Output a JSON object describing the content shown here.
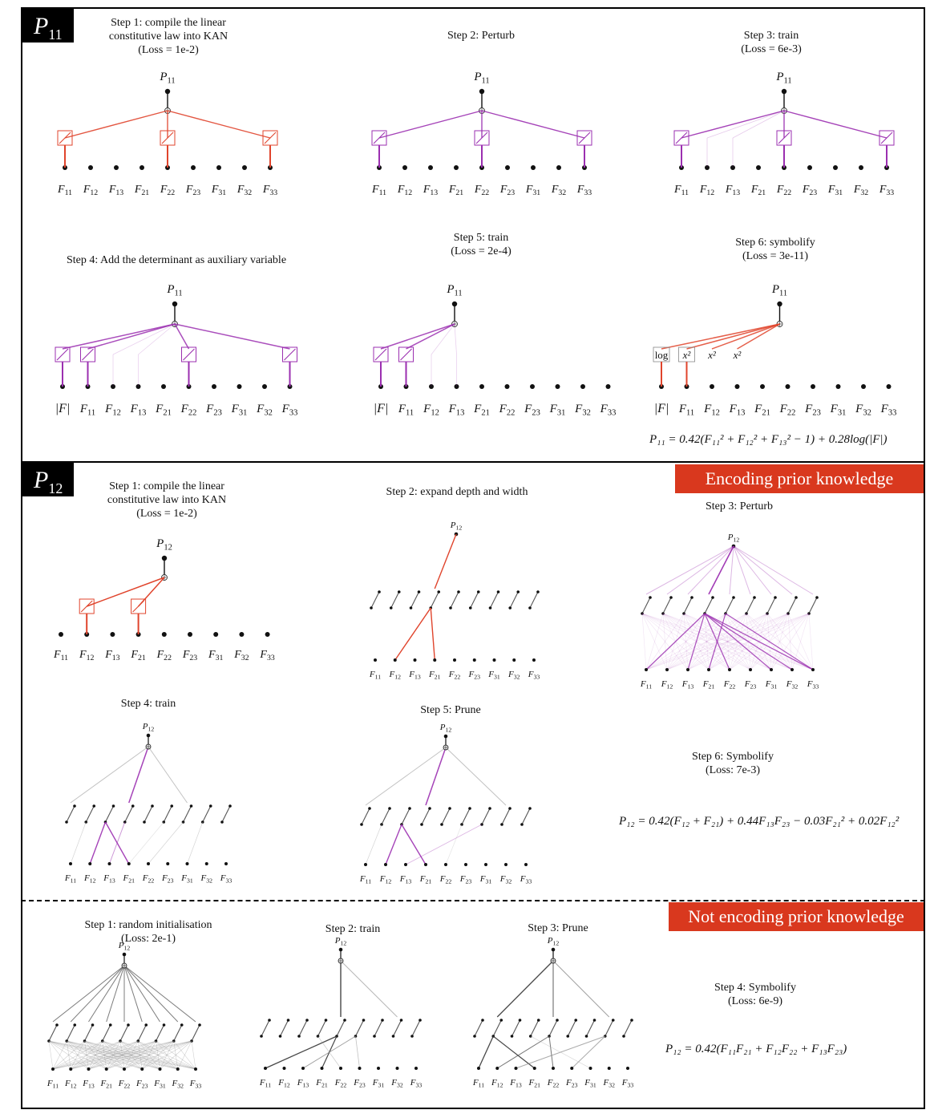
{
  "sections": [
    {
      "tag_letter": "P",
      "tag_sub": "11"
    },
    {
      "tag_letter": "P",
      "tag_sub": "12"
    }
  ],
  "banners": {
    "encoding": "Encoding prior knowledge",
    "not_encoding": "Not encoding prior knowledge"
  },
  "inputs": [
    "11",
    "12",
    "13",
    "21",
    "22",
    "23",
    "31",
    "32",
    "33"
  ],
  "det_label": "|F|",
  "output_sub_p11": "11",
  "output_sub_p12": "12",
  "p11": {
    "step1": "Step 1: compile the linear\nconstitutive law into KAN\n(Loss = 1e-2)",
    "step2": "Step 2: Perturb",
    "step3": "Step 3: train\n(Loss = 6e-3)",
    "step4": "Step 4: Add the determinant as auxiliary variable",
    "step5": "Step 5: train\n(Loss = 2e-4)",
    "step6": "Step 6: symbolify\n(Loss = 3e-11)",
    "sym_labels": [
      "log",
      "x²",
      "x²",
      "x²"
    ],
    "formula": "P₁₁ = 0.42(F₁₁² + F₁₂² + F₁₃² − 1) + 0.28log(|F|)"
  },
  "p12": {
    "step1": "Step 1: compile the linear\nconstitutive law into KAN\n(Loss = 1e-2)",
    "step2": "Step 2: expand depth and width",
    "step3": "Step 3: Perturb",
    "step4": "Step 4: train",
    "step5": "Step 5: Prune",
    "step6": "Step 6: Symbolify\n(Loss: 7e-3)",
    "formula": "P₁₂ = 0.42(F₁₂ + F₂₁) + 0.44F₁₃F₂₃ − 0.03F₂₁² + 0.02F₁₂²"
  },
  "no_prior": {
    "step1": "Step 1: random initialisation\n(Loss: 2e-1)",
    "step2": "Step 2: train",
    "step3": "Step 3: Prune",
    "step4": "Step 4: Symbolify\n(Loss: 6e-9)",
    "formula": "P₁₂ = 0.42(F₁₁F₂₁ + F₁₂F₂₂ + F₁₃F₂₃)"
  },
  "colors": {
    "red": "#e0442c",
    "purple": "#9b2fb0",
    "banner": "#d9381e"
  }
}
